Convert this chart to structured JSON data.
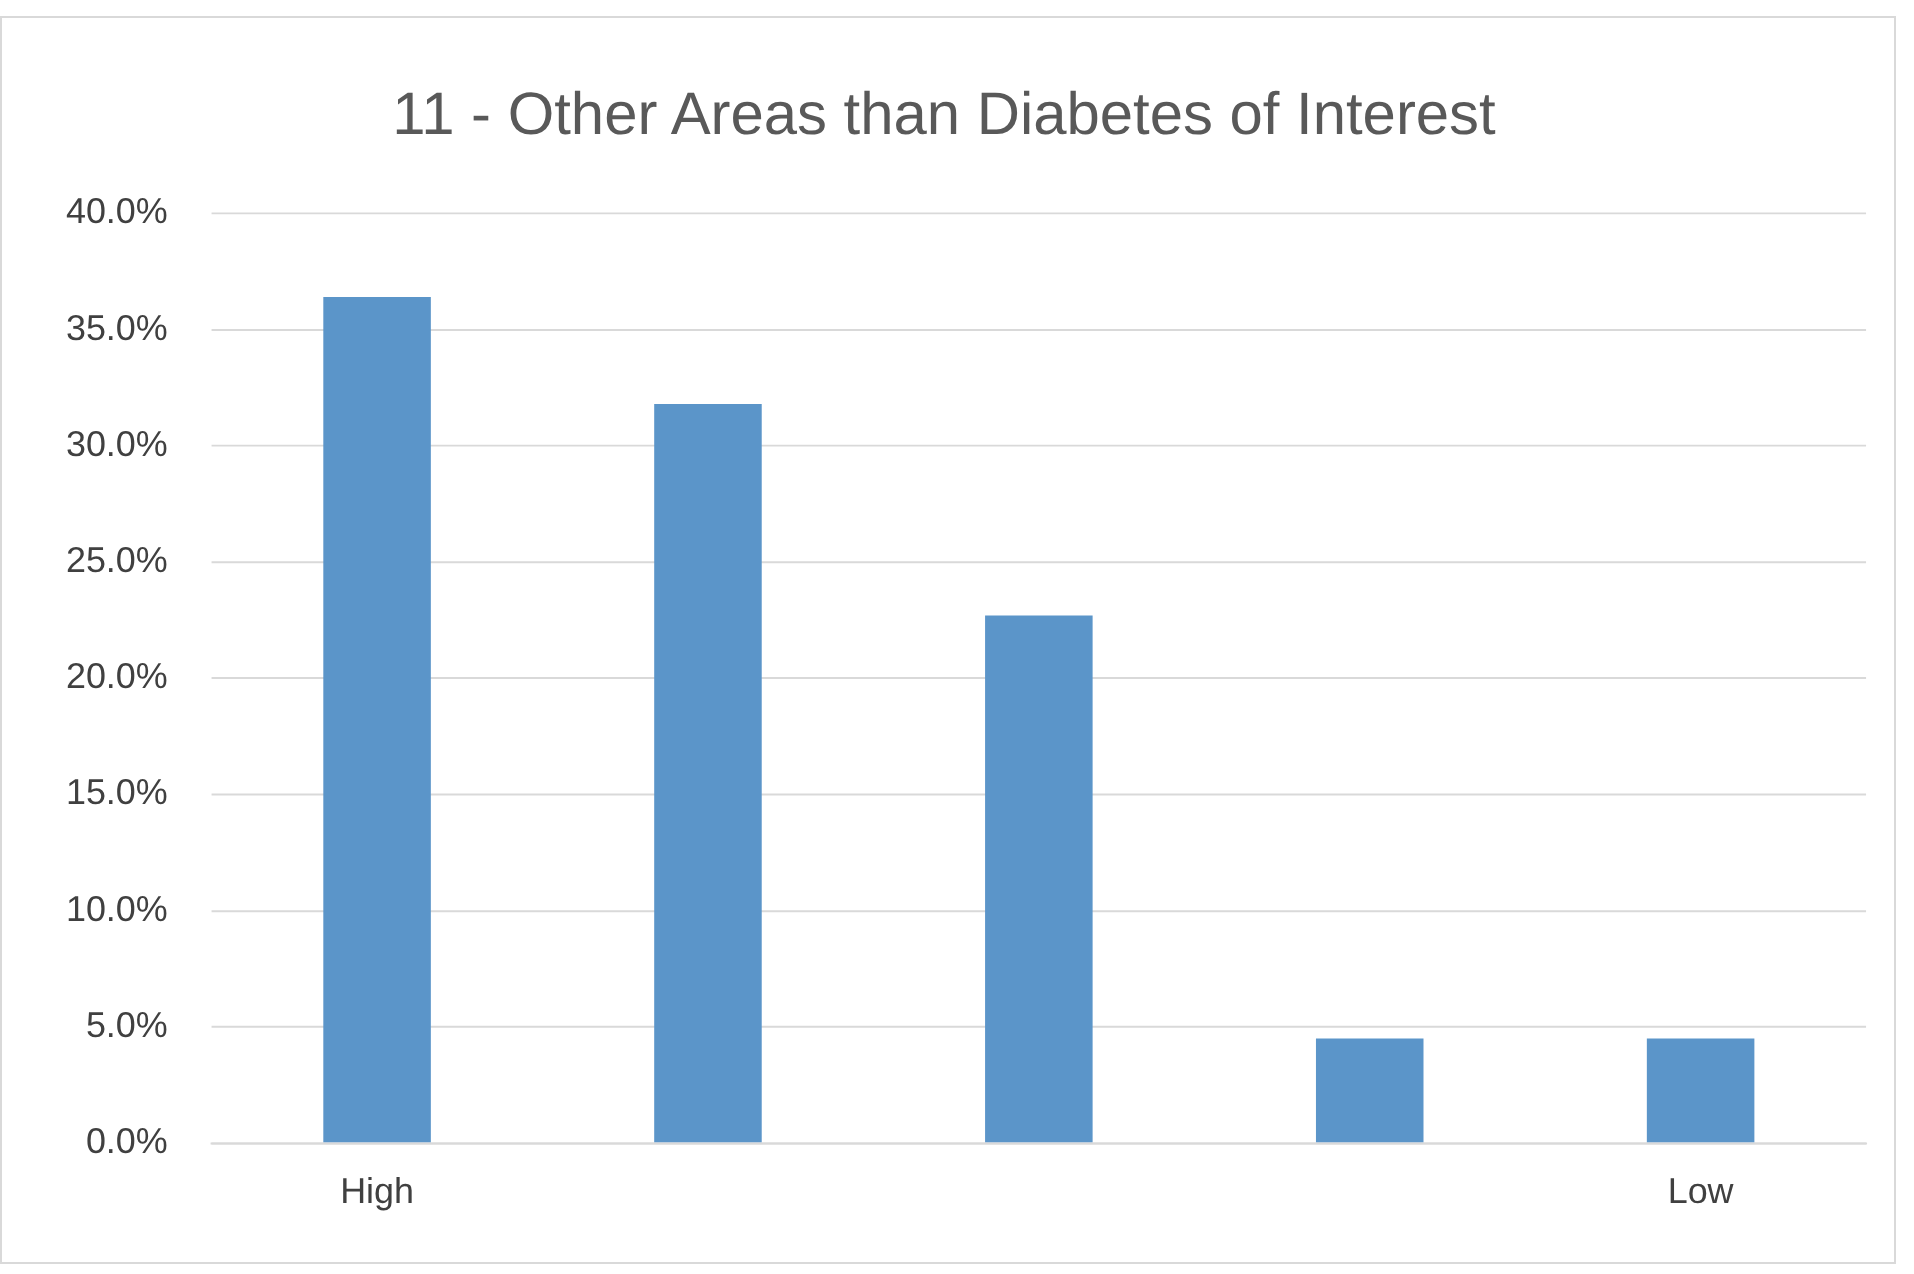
{
  "chart_data": {
    "type": "bar",
    "title": "11 - Other Areas than Diabetes of Interest",
    "categories": [
      "High",
      null,
      null,
      null,
      "Low"
    ],
    "values": [
      36.4,
      31.8,
      22.7,
      4.5,
      4.5
    ],
    "color": "#5b95c9",
    "ylim": [
      0,
      40
    ],
    "yticks": [
      {
        "value": 0,
        "label": "0.0%"
      },
      {
        "value": 5,
        "label": "5.0%"
      },
      {
        "value": 10,
        "label": "10.0%"
      },
      {
        "value": 15,
        "label": "15.0%"
      },
      {
        "value": 20,
        "label": "20.0%"
      },
      {
        "value": 25,
        "label": "25.0%"
      },
      {
        "value": 30,
        "label": "30.0%"
      },
      {
        "value": 35,
        "label": "35.0%"
      },
      {
        "value": 40,
        "label": "40.0%"
      }
    ],
    "grid": "y",
    "legend": false
  }
}
